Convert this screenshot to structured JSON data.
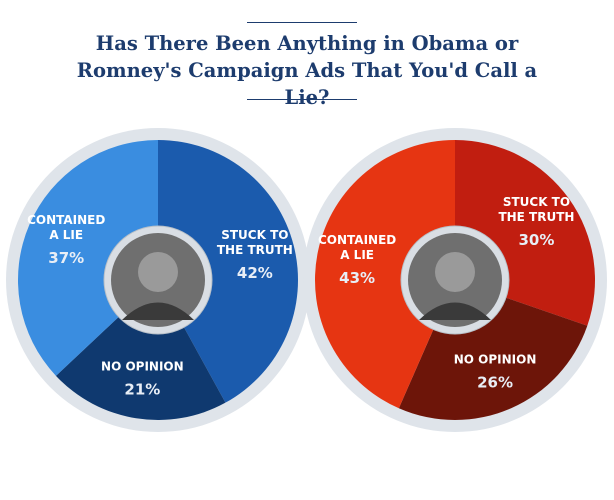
{
  "title": "Has There Been Anything in Obama or Romney's Campaign Ads That You'd Call a Lie?",
  "chart_data": [
    {
      "type": "pie",
      "categories": [
        "STUCK TO\nTHE TRUTH",
        "NO OPINION",
        "CONTAINED\nA LIE"
      ],
      "values": [
        42,
        21,
        37
      ],
      "value_labels": [
        "42%",
        "21%",
        "37%"
      ],
      "colors": [
        "#1b5bad",
        "#0f396f",
        "#3a8de0"
      ]
    },
    {
      "type": "pie",
      "categories": [
        "STUCK TO\nTHE TRUTH",
        "NO OPINION",
        "CONTAINED\nA LIE"
      ],
      "values": [
        30,
        26,
        43
      ],
      "value_labels": [
        "30%",
        "26%",
        "43%"
      ],
      "colors": [
        "#c11e10",
        "#6d1509",
        "#e63512"
      ]
    }
  ]
}
